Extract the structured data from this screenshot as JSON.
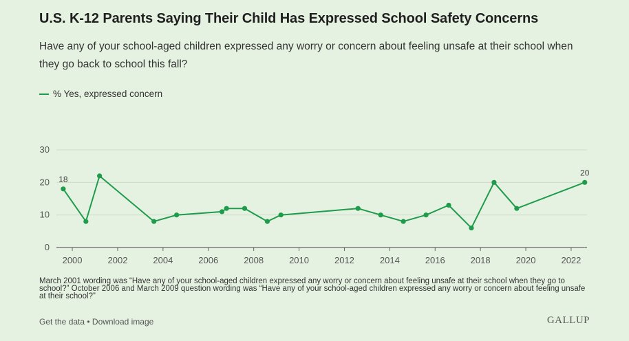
{
  "header": {
    "title": "U.S. K-12 Parents Saying Their Child Has Expressed School Safety Concerns",
    "subtitle": "Have any of your school-aged children expressed any worry or concern about feeling unsafe at their school when they go back to school this fall?"
  },
  "legend": {
    "label": "% Yes, expressed concern"
  },
  "colors": {
    "series": "#1e9b4b",
    "grid": "#cfdcc9",
    "axis": "#666666"
  },
  "chart_data": {
    "type": "line",
    "title": "U.S. K-12 Parents Saying Their Child Has Expressed School Safety Concerns",
    "xlabel": "",
    "ylabel": "",
    "xlim": [
      1999.3,
      2022.7
    ],
    "ylim": [
      0,
      30
    ],
    "yticks": [
      0,
      10,
      20,
      30
    ],
    "xticks": [
      2000,
      2002,
      2004,
      2006,
      2008,
      2010,
      2012,
      2014,
      2016,
      2018,
      2020,
      2022
    ],
    "grid": true,
    "legend_position": "top-left",
    "series": [
      {
        "name": "% Yes, expressed concern",
        "x": [
          1999.6,
          2000.6,
          2001.2,
          2003.6,
          2004.6,
          2006.6,
          2006.8,
          2007.6,
          2008.6,
          2009.2,
          2012.6,
          2013.6,
          2014.6,
          2015.6,
          2016.6,
          2017.6,
          2018.6,
          2019.6,
          2022.6
        ],
        "y": [
          18,
          8,
          22,
          8,
          10,
          11,
          12,
          12,
          8,
          10,
          12,
          10,
          8,
          10,
          13,
          6,
          20,
          12,
          20
        ]
      }
    ],
    "annotations": [
      {
        "x": 1999.6,
        "y": 18,
        "text": "18"
      },
      {
        "x": 2022.6,
        "y": 20,
        "text": "20"
      }
    ]
  },
  "note": "March 2001 wording was “Have any of your school-aged children expressed any worry or concern about feeling unsafe at their school when they go to school?” October 2006 and March 2009 question wording was “Have any of your school-aged children expressed any worry or concern about feeling unsafe at their school?”",
  "footer": {
    "get_data": "Get the data",
    "separator": " • ",
    "download": "Download image",
    "brand": "GALLUP"
  }
}
